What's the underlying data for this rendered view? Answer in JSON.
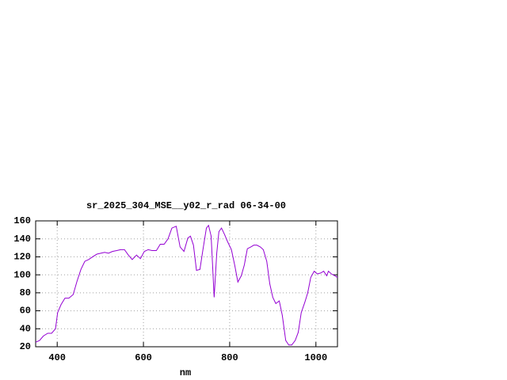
{
  "chart_data": {
    "type": "line",
    "title": "sr_2025_304_MSE__y02_r_rad 06-34-00",
    "xlabel": "nm",
    "x": [
      350,
      359,
      368,
      378,
      387,
      396,
      401,
      409,
      418,
      427,
      437,
      446,
      455,
      464,
      473,
      482,
      492,
      501,
      510,
      519,
      528,
      538,
      547,
      556,
      565,
      574,
      584,
      593,
      602,
      611,
      620,
      630,
      639,
      648,
      657,
      666,
      676,
      685,
      694,
      703,
      709,
      716,
      723,
      731,
      738,
      746,
      751,
      757,
      764,
      770,
      775,
      781,
      788,
      795,
      804,
      812,
      819,
      827,
      834,
      841,
      849,
      856,
      863,
      871,
      878,
      886,
      893,
      900,
      907,
      915,
      922,
      930,
      937,
      944,
      952,
      959,
      966,
      974,
      981,
      988,
      996,
      1003,
      1011,
      1018,
      1025,
      1029,
      1036,
      1044,
      1050
    ],
    "values": [
      25,
      27,
      32,
      35,
      35,
      40,
      58,
      67,
      74,
      74,
      78,
      93,
      106,
      115,
      117,
      120,
      123,
      124,
      125,
      124,
      126,
      127,
      128,
      128,
      122,
      117,
      122,
      118,
      126,
      128,
      127,
      127,
      134,
      134,
      140,
      152,
      154,
      131,
      126,
      141,
      143,
      133,
      105,
      106,
      128,
      152,
      155,
      143,
      75,
      124,
      148,
      152,
      145,
      137,
      128,
      110,
      92,
      99,
      111,
      129,
      131,
      133,
      133,
      131,
      128,
      115,
      90,
      75,
      68,
      71,
      55,
      27,
      22,
      22,
      27,
      36,
      58,
      69,
      80,
      97,
      104,
      101,
      102,
      104,
      99,
      104,
      101,
      99,
      97
    ],
    "color": "#9400d3",
    "xlim": [
      350,
      1050
    ],
    "xticks": [
      400,
      600,
      800,
      1000
    ],
    "ylim": [
      20,
      160
    ],
    "yticks": [
      20,
      40,
      60,
      80,
      100,
      120,
      140,
      160
    ],
    "grid": true
  }
}
